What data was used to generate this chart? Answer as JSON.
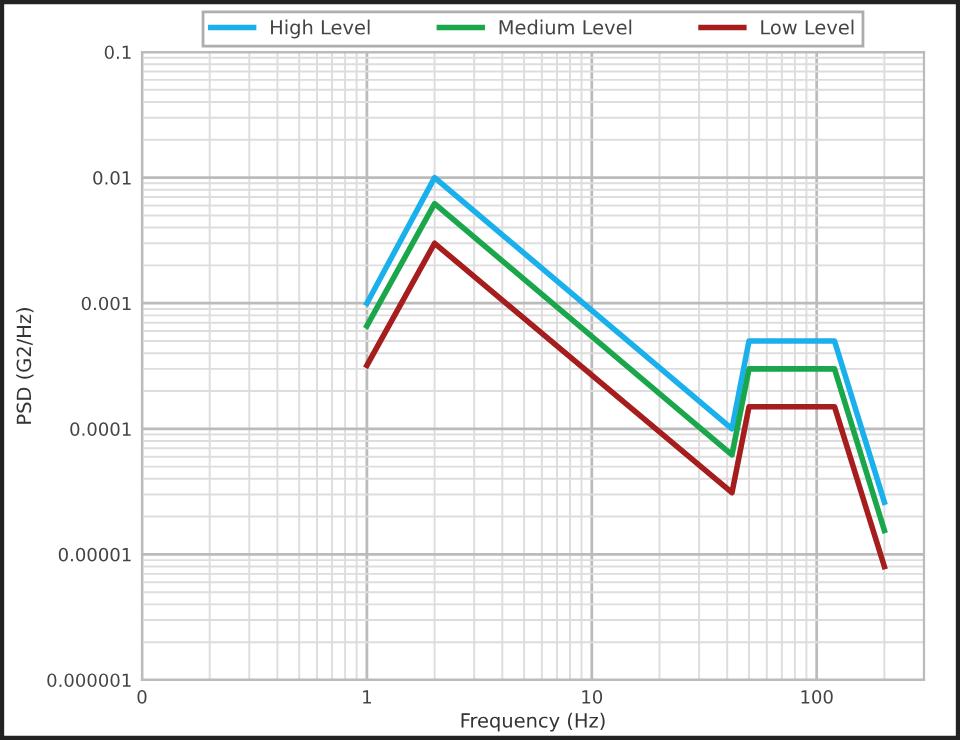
{
  "chart_data": {
    "type": "line",
    "xlabel": "Frequency (Hz)",
    "ylabel": "PSD (G2/Hz)",
    "log": "xy",
    "grid": true,
    "legend": "top",
    "line_style": "solid",
    "marker": "none",
    "x": [
      1,
      2,
      42,
      50,
      120,
      200
    ],
    "xlim": [
      0.1,
      300
    ],
    "xticks": [
      {
        "value": 0.1,
        "label": "0"
      },
      {
        "value": 1,
        "label": "1"
      },
      {
        "value": 10,
        "label": "10"
      },
      {
        "value": 100,
        "label": "100"
      }
    ],
    "ylim": [
      1e-06,
      0.1
    ],
    "yticks": [
      {
        "value": 1e-06,
        "label": "0.000001"
      },
      {
        "value": 1e-05,
        "label": "0.00001"
      },
      {
        "value": 0.0001,
        "label": "0.0001"
      },
      {
        "value": 0.001,
        "label": "0.001"
      },
      {
        "value": 0.01,
        "label": "0.01"
      },
      {
        "value": 0.1,
        "label": "0.1"
      }
    ],
    "series": [
      {
        "name": "High Level",
        "color": "#1ab0ec",
        "values": [
          0.001,
          0.01,
          0.0001,
          0.0005,
          0.0005,
          2.6e-05
        ]
      },
      {
        "name": "Medium Level",
        "color": "#1aa64a",
        "values": [
          0.00066,
          0.0062,
          6.2e-05,
          0.0003,
          0.0003,
          1.55e-05
        ]
      },
      {
        "name": "Low Level",
        "color": "#a51d1d",
        "values": [
          0.00032,
          0.003,
          3.1e-05,
          0.00015,
          0.00015,
          8e-06
        ]
      }
    ]
  }
}
